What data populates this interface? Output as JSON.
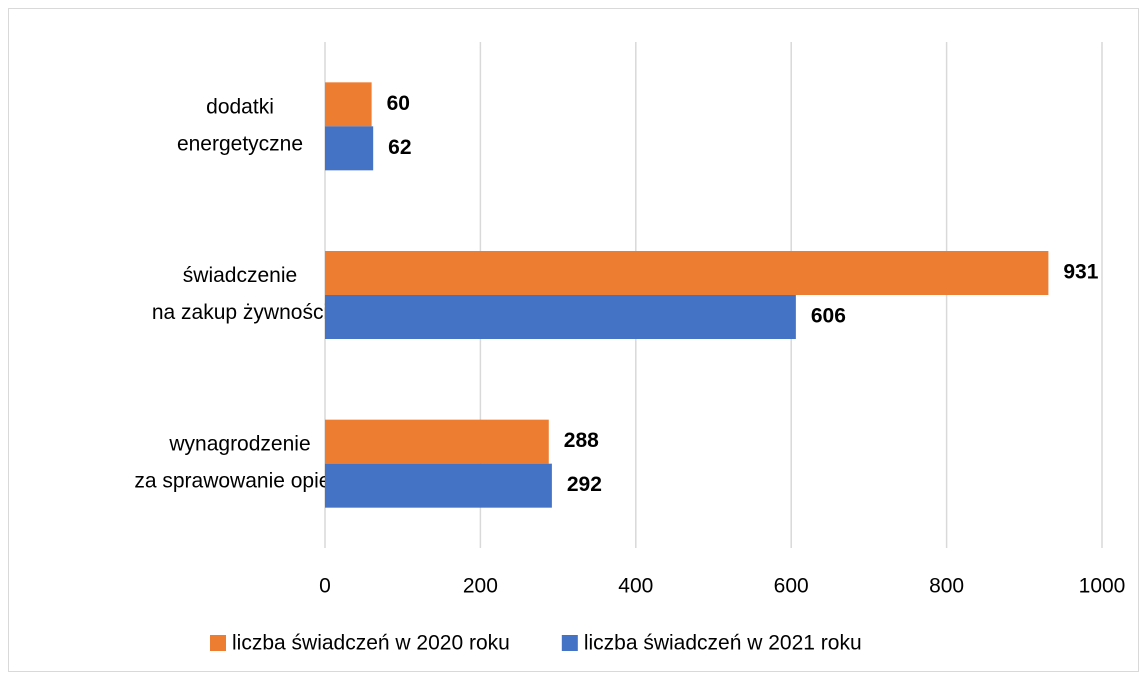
{
  "chart_data": {
    "type": "barh",
    "categories": [
      [
        "dodatki",
        "energetyczne"
      ],
      [
        "świadczenie",
        "na zakup żywności"
      ],
      [
        "wynagrodzenie",
        "za sprawowanie opieki"
      ]
    ],
    "series": [
      {
        "name": "liczba świadczeń w 2020 roku",
        "color": "#ed7d31",
        "values": [
          60,
          931,
          288
        ]
      },
      {
        "name": "liczba świadczeń w 2021 roku",
        "color": "#4472c4",
        "values": [
          62,
          606,
          292
        ]
      }
    ],
    "xlim": [
      0,
      1000
    ],
    "xticks": [
      0,
      200,
      400,
      600,
      800,
      1000
    ],
    "grid": true,
    "legend": "bottom"
  }
}
